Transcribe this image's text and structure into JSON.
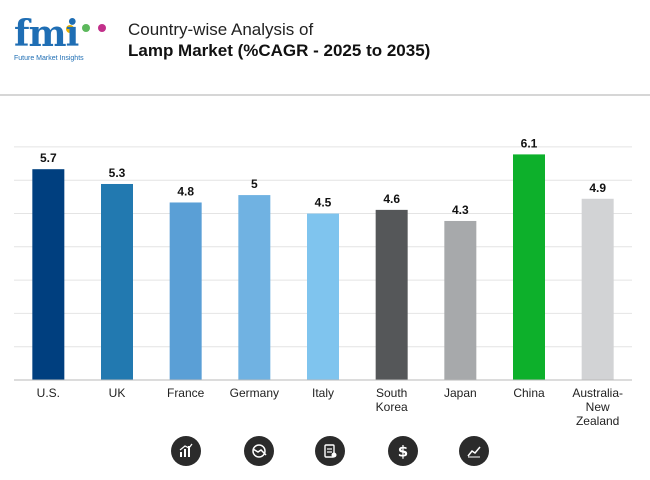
{
  "header": {
    "logo_text": "fmi",
    "logo_subtitle": "Future Market Insights",
    "title_line1": "Country-wise Analysis of",
    "title_line2": "Lamp Market (%CAGR - 2025 to 2035)"
  },
  "chart_data": {
    "type": "bar",
    "title": "Country-wise Analysis of Lamp Market (%CAGR - 2025 to 2035)",
    "xlabel": "",
    "ylabel": "",
    "ylim": [
      0,
      6.3
    ],
    "grid": true,
    "categories": [
      [
        "U.S."
      ],
      [
        "UK"
      ],
      [
        "France"
      ],
      [
        "Germany"
      ],
      [
        "Italy"
      ],
      [
        "South",
        "Korea"
      ],
      [
        "Japan"
      ],
      [
        "China"
      ],
      [
        "Australia-",
        "New",
        "Zealand"
      ]
    ],
    "values": [
      5.7,
      5.3,
      4.8,
      5,
      4.5,
      4.6,
      4.3,
      6.1,
      4.9
    ],
    "value_labels": [
      "5.7",
      "5.3",
      "4.8",
      "5",
      "4.5",
      "4.6",
      "4.3",
      "6.1",
      "4.9"
    ],
    "colors": [
      "#003f7f",
      "#2279b0",
      "#5a9fd6",
      "#70b2e2",
      "#7fc4ee",
      "#555759",
      "#a7a9ab",
      "#0db02b",
      "#d2d3d5"
    ]
  },
  "footer_icons": [
    "bar-chart-icon",
    "pie-chart-icon",
    "document-icon",
    "dollar-icon",
    "line-chart-icon"
  ]
}
